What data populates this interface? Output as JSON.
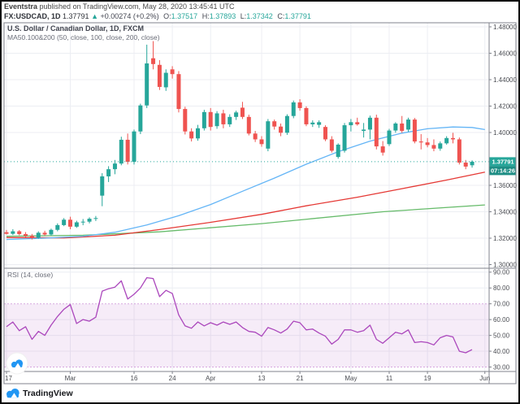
{
  "header": {
    "line1_bold": "Eventstra",
    "line1_rest": " published on TradingView.com, May 28, 2020 13:45:41 UTC",
    "symbol": "FX:USDCAD, 1D",
    "last_price": "1.37791",
    "arrow": "▲",
    "change": "+0.00274 (+0.2%)",
    "o_label": "O:",
    "o_value": "1.37517",
    "h_label": "H:",
    "h_value": "1.37893",
    "l_label": "L:",
    "l_value": "1.37342",
    "c_label": "C:",
    "c_value": "1.37791"
  },
  "main_legend": {
    "title": "U.S. Dollar / Canadian Dollar, 1D, FXCM",
    "ma_line": "MA50.100&200 (50, close, 100, close, 200, close)"
  },
  "rsi_legend": "RSI (14, close)",
  "price_axis_label": "1.37791",
  "countdown": "07:14:26",
  "footer": {
    "brand": "TradingView"
  },
  "colors": {
    "up": "#26a69a",
    "down": "#ef5350",
    "ma50": "#64b5f6",
    "ma100": "#e53935",
    "ma200": "#66bb6a",
    "rsi": "#ab47bc",
    "rsi_band_fill": "rgba(171,71,188,0.10)",
    "grid": "#eceef3",
    "frame": "#80838c",
    "axis_text": "#4a4c52",
    "price_label_bg": "#26a69a",
    "countdown_bg": "#1d8d84",
    "logo_blue": "#2196f3"
  },
  "chart_data": [
    {
      "type": "candlestick",
      "title": "U.S. Dollar / Canadian Dollar, 1D, FXCM",
      "ylim": [
        1.295,
        1.483
      ],
      "y_ticks": [
        {
          "label": "1.48000",
          "value": 1.48
        },
        {
          "label": "1.46000",
          "value": 1.46
        },
        {
          "label": "1.44000",
          "value": 1.44
        },
        {
          "label": "1.42000",
          "value": 1.42
        },
        {
          "label": "1.40000",
          "value": 1.4
        },
        {
          "label": "1.36000",
          "value": 1.36
        },
        {
          "label": "1.34000",
          "value": 1.34
        },
        {
          "label": "1.32000",
          "value": 1.32
        },
        {
          "label": "1.30000",
          "value": 1.3
        }
      ],
      "x_labels": [
        {
          "label": "17",
          "i": 0
        },
        {
          "label": "Mar",
          "i": 10
        },
        {
          "label": "16",
          "i": 20
        },
        {
          "label": "24",
          "i": 26
        },
        {
          "label": "Apr",
          "i": 32
        },
        {
          "label": "13",
          "i": 40
        },
        {
          "label": "21",
          "i": 46
        },
        {
          "label": "May",
          "i": 54
        },
        {
          "label": "11",
          "i": 60
        },
        {
          "label": "19",
          "i": 66
        },
        {
          "label": "Jun",
          "i": 75
        }
      ],
      "current_price": 1.37791,
      "candles_ohlc": [
        [
          1.3245,
          1.3262,
          1.3228,
          1.3233
        ],
        [
          1.3233,
          1.3268,
          1.3224,
          1.3252
        ],
        [
          1.3252,
          1.3261,
          1.3222,
          1.3231
        ],
        [
          1.3231,
          1.3246,
          1.3206,
          1.3218
        ],
        [
          1.3218,
          1.3232,
          1.319,
          1.3203
        ],
        [
          1.3203,
          1.3252,
          1.3196,
          1.3241
        ],
        [
          1.3241,
          1.3256,
          1.3218,
          1.3228
        ],
        [
          1.3228,
          1.3272,
          1.322,
          1.3263
        ],
        [
          1.3263,
          1.3312,
          1.3252,
          1.3299
        ],
        [
          1.3299,
          1.3352,
          1.3291,
          1.334
        ],
        [
          1.334,
          1.3362,
          1.3268,
          1.3287
        ],
        [
          1.3287,
          1.3332,
          1.3278,
          1.332
        ],
        [
          1.332,
          1.3345,
          1.3298,
          1.3325
        ],
        [
          1.3325,
          1.3358,
          1.3312,
          1.3347
        ],
        [
          1.3347,
          1.3368,
          1.333,
          1.3352
        ],
        [
          1.3522,
          1.3692,
          1.3442,
          1.3668
        ],
        [
          1.3668,
          1.3745,
          1.3625,
          1.3722
        ],
        [
          1.3722,
          1.3792,
          1.3684,
          1.3765
        ],
        [
          1.3765,
          1.3968,
          1.3752,
          1.3945
        ],
        [
          1.3945,
          1.3992,
          1.3758,
          1.3778
        ],
        [
          1.3778,
          1.4022,
          1.3758,
          1.4008
        ],
        [
          1.4008,
          1.4218,
          1.3988,
          1.4205
        ],
        [
          1.4205,
          1.4665,
          1.4185,
          1.4523
        ],
        [
          1.4562,
          1.4692,
          1.4478,
          1.4518
        ],
        [
          1.4512,
          1.4548,
          1.4322,
          1.4345
        ],
        [
          1.4342,
          1.4478,
          1.4315,
          1.4452
        ],
        [
          1.4478,
          1.4502,
          1.4408,
          1.4442
        ],
        [
          1.4442,
          1.4465,
          1.4152,
          1.4178
        ],
        [
          1.4178,
          1.4195,
          1.3985,
          1.4008
        ],
        [
          1.4008,
          1.4032,
          1.3932,
          1.3955
        ],
        [
          1.3955,
          1.4058,
          1.3938,
          1.4032
        ],
        [
          1.4032,
          1.4172,
          1.4015,
          1.4155
        ],
        [
          1.4155,
          1.4185,
          1.4015,
          1.4042
        ],
        [
          1.4048,
          1.4162,
          1.4028,
          1.4145
        ],
        [
          1.4145,
          1.4172,
          1.4032,
          1.4062
        ],
        [
          1.4062,
          1.4138,
          1.4042,
          1.4118
        ],
        [
          1.4118,
          1.4165,
          1.4095,
          1.4152
        ],
        [
          1.4188,
          1.4232,
          1.4102,
          1.4118
        ],
        [
          1.4118,
          1.4135,
          1.3978,
          1.3992
        ],
        [
          1.3992,
          1.4012,
          1.3928,
          1.3948
        ],
        [
          1.3948,
          1.3972,
          1.3892,
          1.3912
        ],
        [
          1.3878,
          1.4102,
          1.3858,
          1.4085
        ],
        [
          1.4085,
          1.4098,
          1.4022,
          1.4045
        ],
        [
          1.4045,
          1.4068,
          1.3972,
          1.3998
        ],
        [
          1.3998,
          1.4138,
          1.3982,
          1.4125
        ],
        [
          1.4125,
          1.4242,
          1.4108,
          1.4228
        ],
        [
          1.4228,
          1.4252,
          1.4165,
          1.4185
        ],
        [
          1.4185,
          1.4198,
          1.4048,
          1.4062
        ],
        [
          1.4062,
          1.4092,
          1.4042,
          1.4075
        ],
        [
          1.4058,
          1.4092,
          1.4035,
          1.4078
        ],
        [
          1.4042,
          1.4055,
          1.3935,
          1.3948
        ],
        [
          1.3948,
          1.3972,
          1.3848,
          1.3862
        ],
        [
          1.3815,
          1.3918,
          1.3802,
          1.3908
        ],
        [
          1.3862,
          1.4072,
          1.3848,
          1.4055
        ],
        [
          1.4055,
          1.4102,
          1.4008,
          1.4078
        ],
        [
          1.4078,
          1.4112,
          1.4052,
          1.4062
        ],
        [
          1.4012,
          1.4072,
          1.3962,
          1.4022
        ],
        [
          1.4022,
          1.4128,
          1.3948,
          1.4112
        ],
        [
          1.4112,
          1.4135,
          1.3872,
          1.3895
        ],
        [
          1.3895,
          1.3935,
          1.3825,
          1.3848
        ],
        [
          1.3912,
          1.4028,
          1.3898,
          1.4015
        ],
        [
          1.4015,
          1.4078,
          1.3998,
          1.4068
        ],
        [
          1.4068,
          1.4125,
          1.3998,
          1.4012
        ],
        [
          1.4022,
          1.4112,
          1.4005,
          1.4098
        ],
        [
          1.4098,
          1.411,
          1.3918,
          1.3932
        ],
        [
          1.3932,
          1.3988,
          1.3872,
          1.3925
        ],
        [
          1.3925,
          1.3958,
          1.3888,
          1.3905
        ],
        [
          1.3905,
          1.3948,
          1.3858,
          1.3878
        ],
        [
          1.3878,
          1.3932,
          1.3862,
          1.3918
        ],
        [
          1.3918,
          1.3972,
          1.3908,
          1.3958
        ],
        [
          1.3958,
          1.3998,
          1.3918,
          1.3948
        ],
        [
          1.3948,
          1.3962,
          1.3758,
          1.3772
        ],
        [
          1.3772,
          1.3792,
          1.3722,
          1.3742
        ],
        [
          1.3752,
          1.3789,
          1.3734,
          1.3779
        ]
      ],
      "series": [
        {
          "name": "MA50",
          "points": [
            [
              0,
              1.319
            ],
            [
              6,
              1.32
            ],
            [
              12,
              1.3215
            ],
            [
              17,
              1.3245
            ],
            [
              22,
              1.33
            ],
            [
              27,
              1.337
            ],
            [
              32,
              1.3455
            ],
            [
              37,
              1.3555
            ],
            [
              42,
              1.3655
            ],
            [
              47,
              1.376
            ],
            [
              52,
              1.3855
            ],
            [
              57,
              1.3935
            ],
            [
              62,
              1.3995
            ],
            [
              66,
              1.4028
            ],
            [
              70,
              1.4042
            ],
            [
              73,
              1.4038
            ],
            [
              75,
              1.4022
            ]
          ]
        },
        {
          "name": "MA100",
          "points": [
            [
              0,
              1.3205
            ],
            [
              9,
              1.3202
            ],
            [
              17,
              1.3222
            ],
            [
              24,
              1.3265
            ],
            [
              32,
              1.332
            ],
            [
              40,
              1.338
            ],
            [
              47,
              1.3445
            ],
            [
              55,
              1.351
            ],
            [
              62,
              1.3575
            ],
            [
              69,
              1.364
            ],
            [
              75,
              1.37
            ]
          ]
        },
        {
          "name": "MA200",
          "points": [
            [
              0,
              1.3215
            ],
            [
              12,
              1.3222
            ],
            [
              24,
              1.3248
            ],
            [
              40,
              1.331
            ],
            [
              59,
              1.34
            ],
            [
              75,
              1.3452
            ]
          ]
        }
      ]
    },
    {
      "type": "line",
      "title": "RSI (14, close)",
      "ylim": [
        22,
        96
      ],
      "y_ticks": [
        {
          "label": "90.00",
          "value": 90
        },
        {
          "label": "80.00",
          "value": 80
        },
        {
          "label": "70.00",
          "value": 70
        },
        {
          "label": "60.00",
          "value": 60
        },
        {
          "label": "50.00",
          "value": 50
        },
        {
          "label": "40.00",
          "value": 40
        },
        {
          "label": "30.00",
          "value": 30
        }
      ],
      "band": [
        30,
        70
      ],
      "values": [
        55.5,
        58.5,
        53,
        55.5,
        47.5,
        52.5,
        50,
        56.5,
        62,
        66.5,
        69.5,
        57.5,
        60,
        59,
        61.5,
        78,
        79.5,
        80.5,
        84.5,
        73,
        76,
        80,
        86.5,
        86,
        74.5,
        78.5,
        76.5,
        63,
        56,
        54.5,
        58.5,
        56,
        58,
        56.5,
        58.5,
        57,
        58.5,
        55,
        52.5,
        52,
        49.5,
        55,
        53.5,
        51.5,
        54,
        59,
        58,
        53.5,
        54,
        51.5,
        49.5,
        44.5,
        47.5,
        53.5,
        53.5,
        52,
        53,
        56.5,
        47.5,
        45,
        48.5,
        52,
        51,
        53.5,
        45.5,
        46,
        45.5,
        44,
        48.5,
        50,
        49,
        40,
        39,
        41
      ]
    }
  ]
}
